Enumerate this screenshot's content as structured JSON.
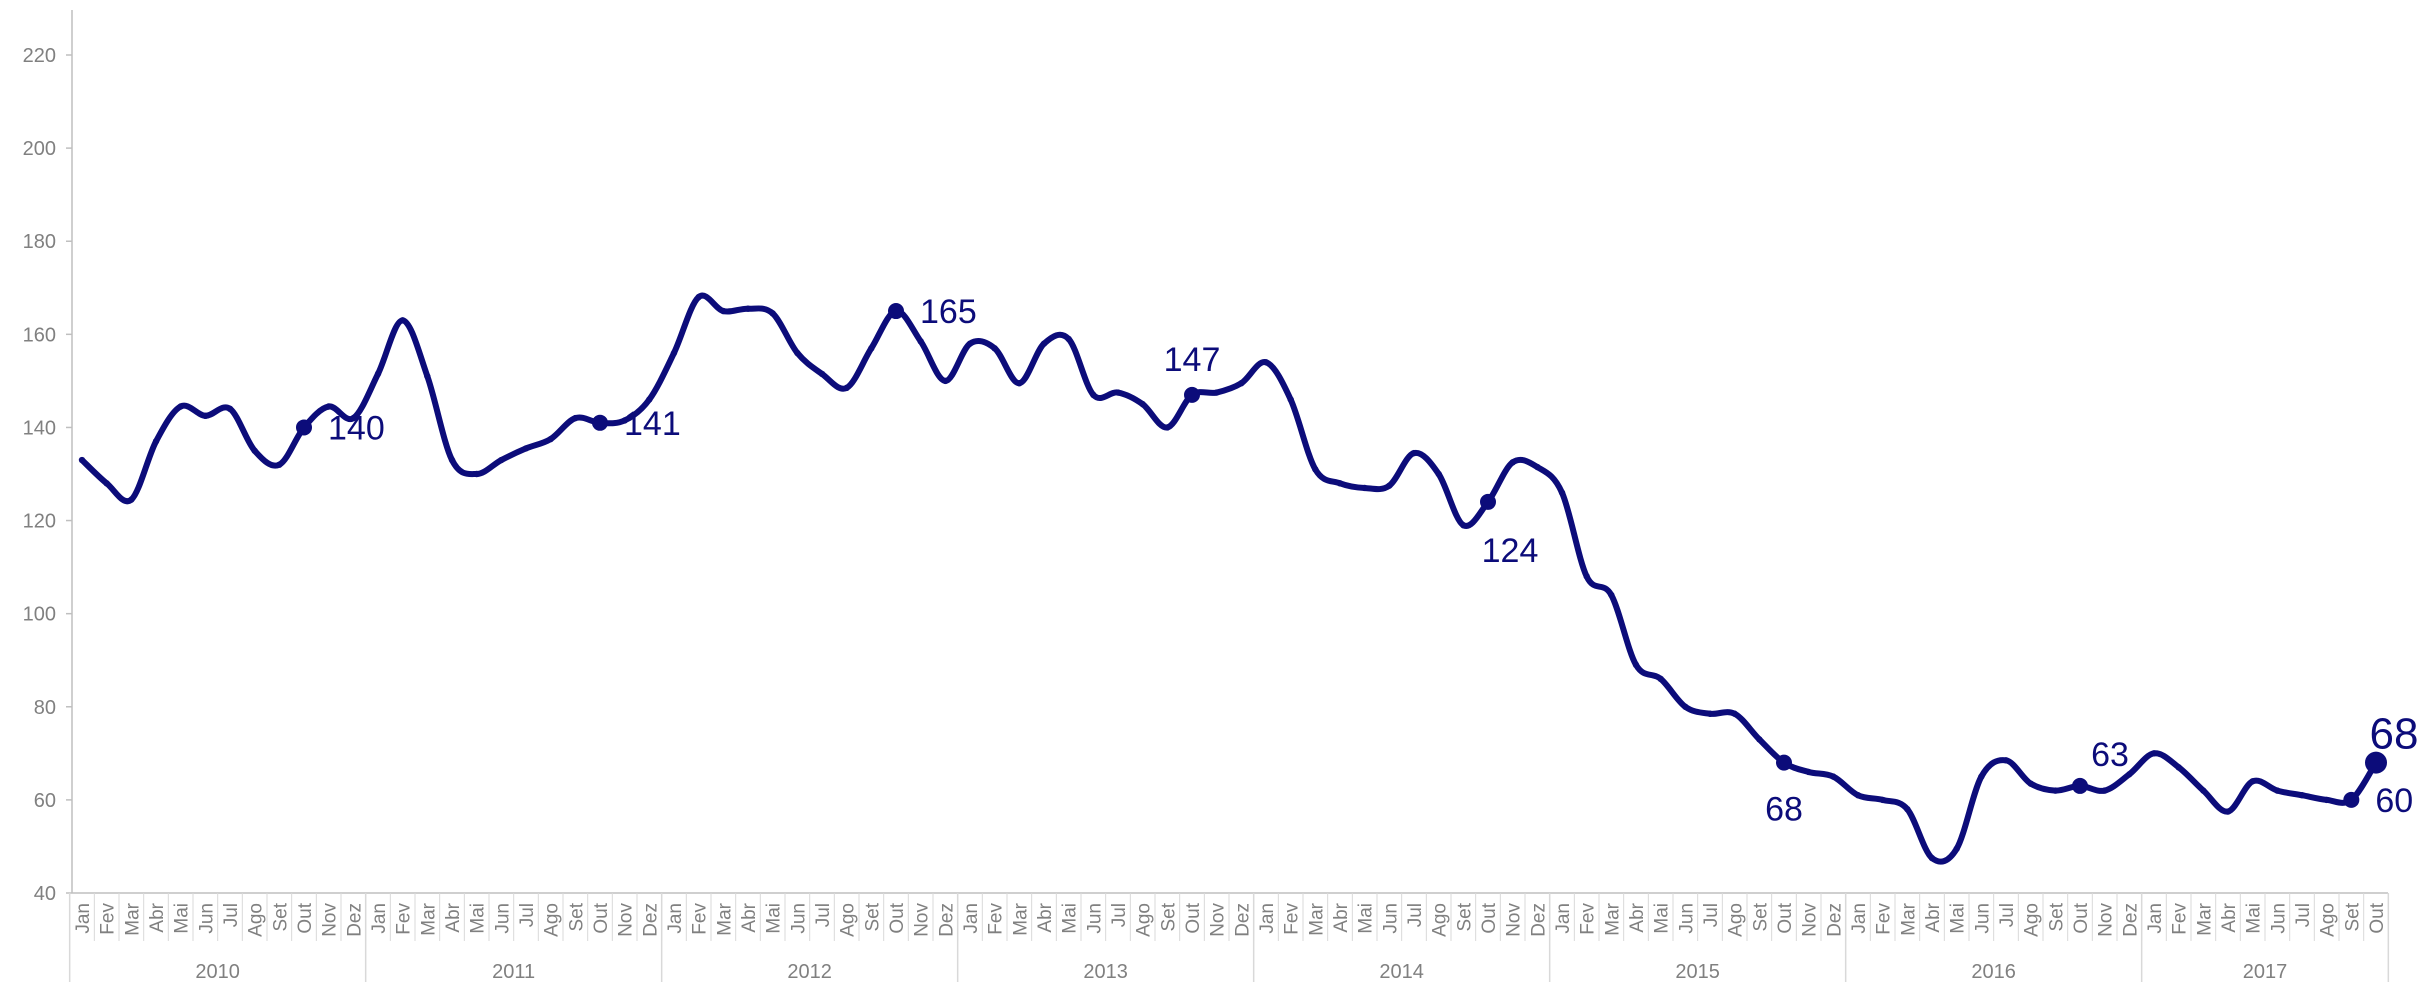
{
  "chart_data": {
    "type": "line",
    "title": "",
    "xlabel": "",
    "ylabel": "",
    "ylim": [
      40,
      220
    ],
    "y_ticks": [
      40,
      60,
      80,
      100,
      120,
      140,
      160,
      180,
      200,
      220
    ],
    "grid": false,
    "color": "#0c0c7a",
    "month_labels": [
      "Jan",
      "Fev",
      "Mar",
      "Abr",
      "Mai",
      "Jun",
      "Jul",
      "Ago",
      "Set",
      "Out",
      "Nov",
      "Dez"
    ],
    "years": [
      "2010",
      "2011",
      "2012",
      "2013",
      "2014",
      "2015",
      "2016",
      "2017"
    ],
    "series": [
      {
        "values": [
          133,
          128,
          124.5,
          137,
          144.5,
          142.5,
          144,
          135,
          132,
          140,
          144.5,
          142,
          151.5,
          163,
          151,
          133,
          130,
          133,
          135.5,
          137.5,
          142,
          141,
          141.5,
          146,
          156,
          168,
          165,
          165.5,
          164.5,
          156,
          151.5,
          148.5,
          157,
          165,
          158.5,
          150,
          158,
          157,
          149.5,
          158,
          159,
          147,
          147.5,
          145,
          140,
          147,
          147.5,
          149.5,
          154,
          146,
          131,
          128,
          127,
          127.5,
          134.5,
          130,
          119,
          124,
          132.5,
          131.5,
          126,
          108,
          104,
          89,
          86,
          80,
          78.5,
          78.5,
          73,
          68,
          66,
          65,
          61,
          60,
          58,
          47.5,
          49.5,
          65,
          68.5,
          63.5,
          62,
          63,
          62,
          65.5,
          70,
          67,
          62,
          57.5,
          64,
          62,
          61,
          60,
          60,
          68
        ]
      }
    ],
    "annotations": [
      {
        "index": 9,
        "label": "140",
        "pos": "right"
      },
      {
        "index": 21,
        "label": "141",
        "pos": "right"
      },
      {
        "index": 33,
        "label": "165",
        "pos": "right"
      },
      {
        "index": 45,
        "label": "147",
        "pos": "above"
      },
      {
        "index": 57,
        "label": "124",
        "pos": "below"
      },
      {
        "index": 69,
        "label": "68",
        "pos": "below"
      },
      {
        "index": 81,
        "label": "63",
        "pos": "above-right"
      },
      {
        "index": 92,
        "label": "60",
        "pos": "right"
      },
      {
        "index": 93,
        "label": "68",
        "pos": "above-right-large"
      }
    ]
  }
}
